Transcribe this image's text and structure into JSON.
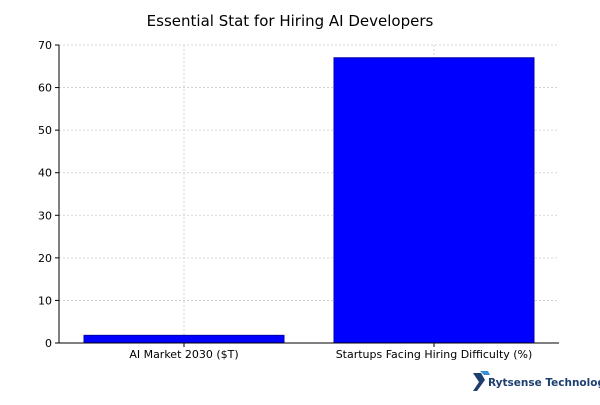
{
  "branding": {
    "logo_text": "Rytsense Technologies",
    "logo_icon": "rytsense-logo-icon"
  },
  "chart_data": {
    "type": "bar",
    "title": "Essential Stat for Hiring AI Developers",
    "xlabel": "",
    "ylabel": "",
    "categories": [
      "AI Market 2030 ($T)",
      "Startups Facing Hiring Difficulty (%)"
    ],
    "values": [
      1.8,
      67
    ],
    "ylim": [
      0,
      70
    ],
    "yticks": [
      0,
      10,
      20,
      30,
      40,
      50,
      60,
      70
    ],
    "grid": true,
    "bar_color": "#0000ff",
    "bar_edge_color": "#0000aa",
    "grid_color": "#cccccc"
  }
}
